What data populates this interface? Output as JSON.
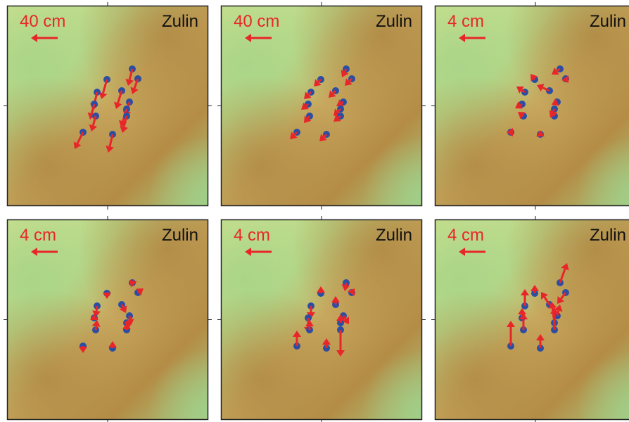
{
  "panels": [
    {
      "scale": "40 cm",
      "site": "Zulin"
    },
    {
      "scale": "40 cm",
      "site": "Zulin"
    },
    {
      "scale": "4 cm",
      "site": "Zulin"
    },
    {
      "scale": "4 cm",
      "site": "Zulin"
    },
    {
      "scale": "4 cm",
      "site": "Zulin"
    },
    {
      "scale": "4 cm",
      "site": "Zulin"
    }
  ]
}
